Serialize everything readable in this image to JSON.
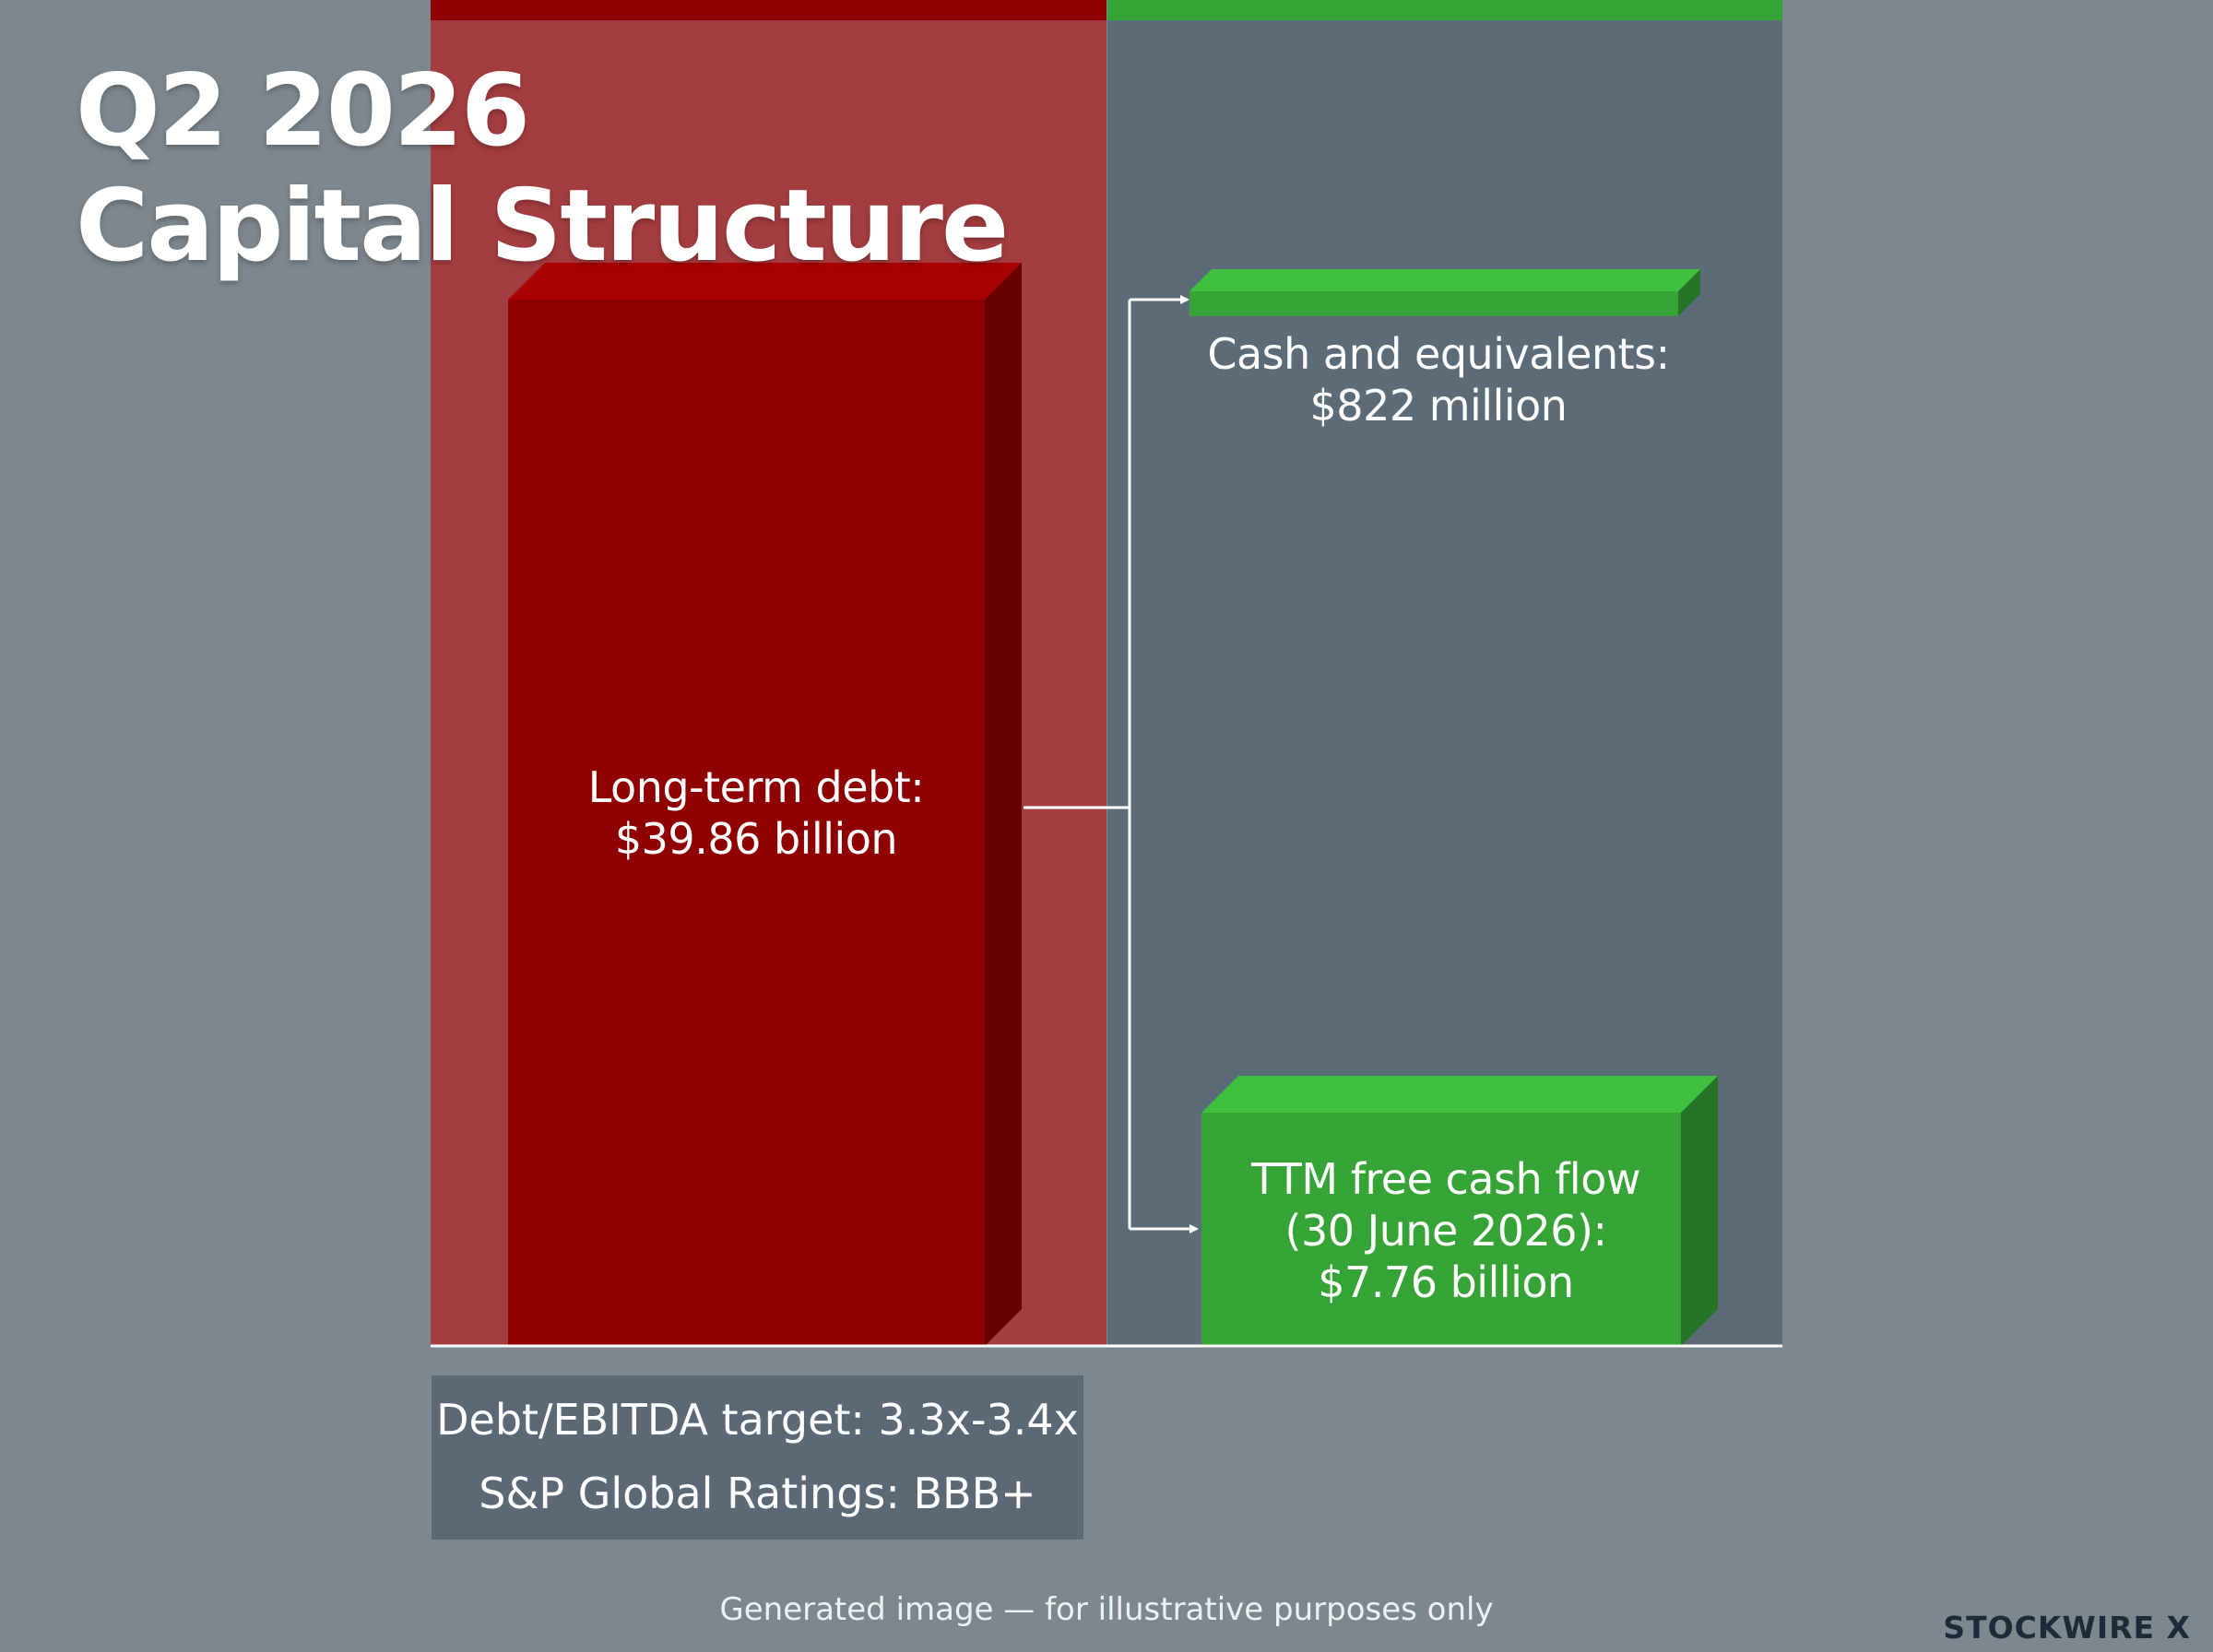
{
  "title_lines": [
    "Q2 2026",
    "Capital Structure"
  ],
  "colors": {
    "background": "#7c8790",
    "debt_panel": "#a43d40",
    "debt_bar": "#8f0000",
    "cash_panel": "#5c6b78",
    "green": "#35a335",
    "accent_red": "#8f0000"
  },
  "chart_data": {
    "type": "bar",
    "unit": "USD billion",
    "bars": [
      {
        "key": "debt",
        "label_lines": [
          "Long-term debt:",
          "$39.86 billion"
        ],
        "value": 39.86,
        "color": "#8f0000"
      },
      {
        "key": "cash",
        "label_lines": [
          "Cash and equivalents:",
          "$822 million"
        ],
        "value": 0.822,
        "color": "#35a335"
      },
      {
        "key": "fcf",
        "label_lines": [
          "TTM free cash flow",
          "(30 June 2026):",
          "$7.76 billion"
        ],
        "value": 7.76,
        "color": "#35a335"
      }
    ]
  },
  "info_box": {
    "line1": "Debt/EBITDA target: 3.3x-3.4x",
    "line2": "S&P Global Ratings: BBB+"
  },
  "footer": "Generated image — for illustrative purposes only",
  "logo": "STOCKWIRE X"
}
